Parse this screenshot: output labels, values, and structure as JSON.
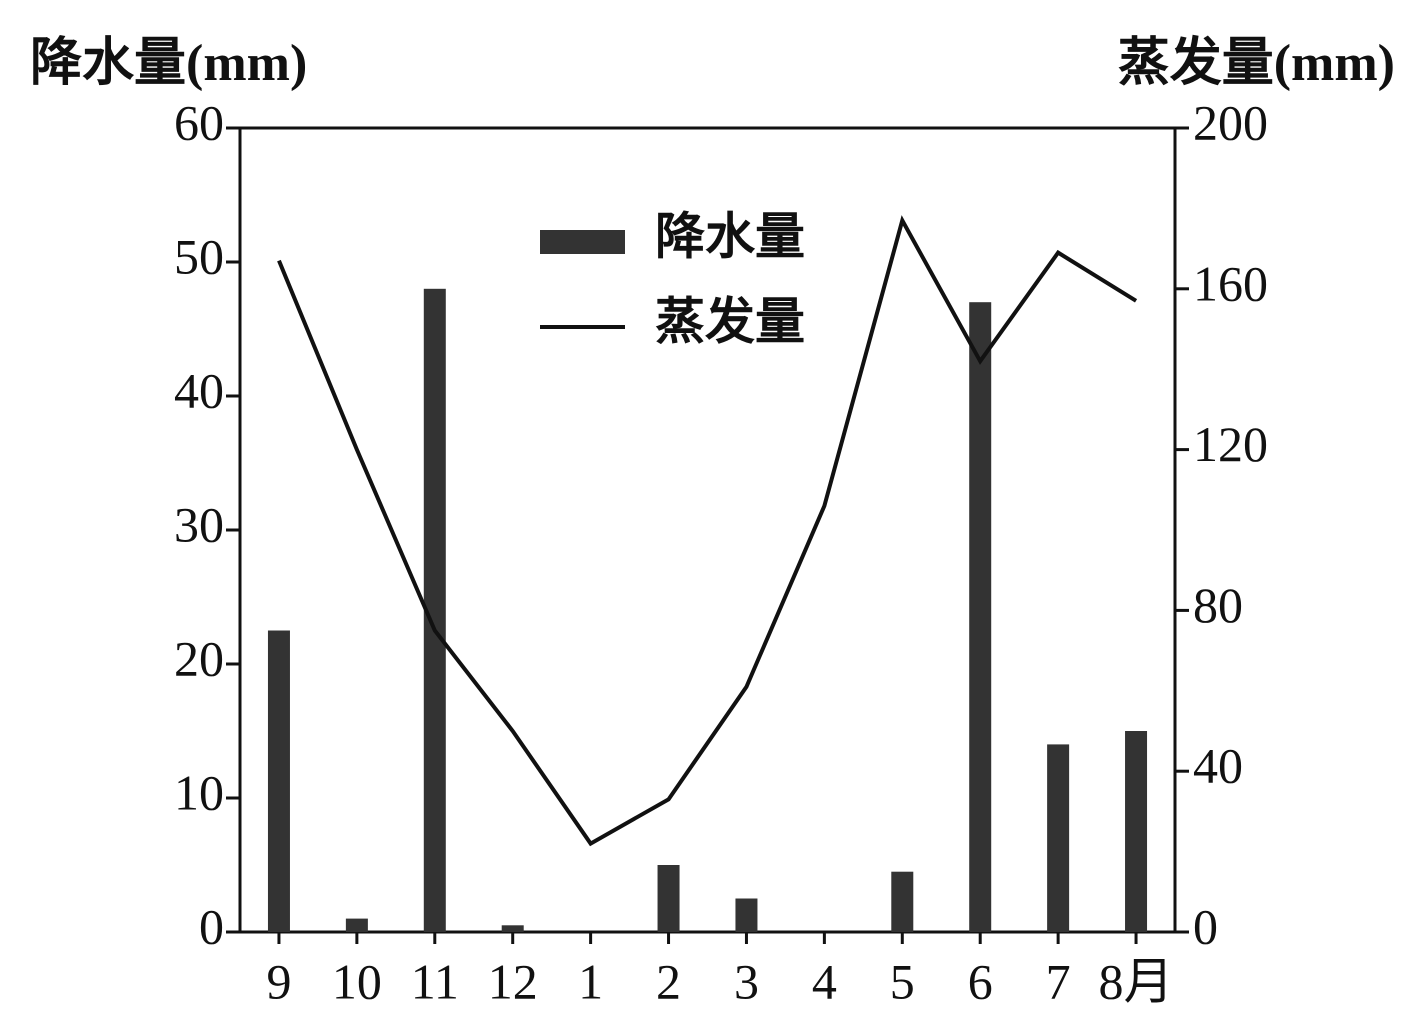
{
  "chart_data": {
    "type": "bar_line",
    "y_label": "降水量(mm)",
    "y2_label": "蒸发量(mm)",
    "categories": [
      "9",
      "10",
      "11",
      "12",
      "1",
      "2",
      "3",
      "4",
      "5",
      "6",
      "7",
      "8月"
    ],
    "series": [
      {
        "name": "降水量",
        "type": "bar",
        "color": "#333333",
        "values": [
          22.5,
          1,
          48,
          0.5,
          0,
          5,
          2.5,
          0,
          4.5,
          47,
          14,
          15
        ]
      },
      {
        "name": "蒸发量",
        "type": "line",
        "axis": "y2",
        "color": "#111111",
        "values": [
          167,
          120,
          75,
          50,
          22,
          33,
          61,
          106,
          177,
          142,
          169,
          157
        ]
      }
    ],
    "ylim": [
      0,
      60
    ],
    "yticks": [
      0,
      10,
      20,
      30,
      40,
      50,
      60
    ],
    "y2lim": [
      0,
      200
    ],
    "y2ticks": [
      0,
      40,
      80,
      120,
      160,
      200
    ],
    "legend": "upper-center",
    "grid": false
  }
}
